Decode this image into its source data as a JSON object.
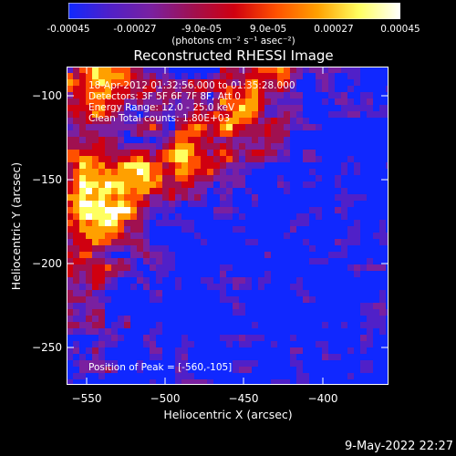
{
  "colorbar": {
    "ticks": [
      "-0.00045",
      "-0.00027",
      "-9.0e-05",
      "9.0e-05",
      "0.00027",
      "0.00045"
    ],
    "units": "(photons cm⁻² s⁻¹ asec⁻²)",
    "colors": [
      "#1028ff",
      "#5020c8",
      "#7a20a0",
      "#a01050",
      "#d00010",
      "#ff5000",
      "#ffa000",
      "#ffff60",
      "#ffffff"
    ]
  },
  "image": {
    "title": "Reconstructed RHESSI Image",
    "annotations": {
      "time": "18-Apr-2012 01:32:56.000 to 01:35:28.000",
      "detectors": "Detectors: 3F 5F 6F 7F 8F, Att 0",
      "energy": "Energy Range: 12.0 - 25.0 keV",
      "clean": "Clean     Total counts: 1.80E+03",
      "peak": "Position of Peak = [-560,-105]"
    },
    "x_label": "Heliocentric X (arcsec)",
    "y_label": "Heliocentric Y (arcsec)",
    "x_ticks": [
      "−550",
      "−500",
      "−450",
      "−400"
    ],
    "y_ticks": [
      "−100",
      "−150",
      "−200",
      "−250"
    ]
  },
  "footer": {
    "timestamp": "9-May-2022 22:27"
  }
}
